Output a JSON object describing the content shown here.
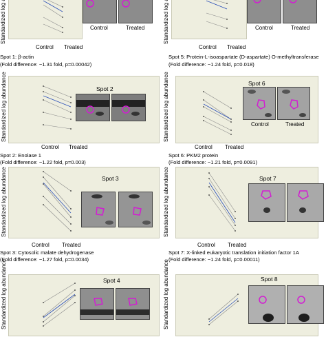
{
  "y_axis_label": "Standardized log abundance",
  "x_categories": [
    "Control",
    "Treated"
  ],
  "gel_labels": [
    "Control",
    "Treated"
  ],
  "colors": {
    "plot_bg": "#eeeedf",
    "line": "#8a8a8a",
    "trend": "#2a4fb8",
    "highlight": "#d21ed2"
  },
  "panels": [
    {
      "id": "spot1",
      "spot_label": "",
      "caption1": "Spot 1: β-actin",
      "caption2": "(Fold difference: −1.31 fold, p=0.00042)"
    },
    {
      "id": "spot5",
      "spot_label": "",
      "caption1": "Spot 5: Protein-L-isoaspartate (D-aspartate) O-methyltransferase",
      "caption2": "(Fold difference: −1.24 fold, p=0.018)"
    },
    {
      "id": "spot2",
      "spot_label": "Spot 2",
      "caption1": "Spot 2: Enolase 1",
      "caption2": "(Fold difference: −1.22 fold, p=0.003)"
    },
    {
      "id": "spot6",
      "spot_label": "Spot 6",
      "caption1": "Spot 6: PKM2 protein",
      "caption2": "(Fold difference: −1.21 fold, p=0.0091)"
    },
    {
      "id": "spot3",
      "spot_label": "Spot 3",
      "caption1": "Spot 3: Cytosolic malate dehydrogenase",
      "caption2": "(Fold difference: −1.27 fold, p=0.0034)"
    },
    {
      "id": "spot7",
      "spot_label": "Spot 7",
      "caption1": "Spot 7: X-linked eukaryotic translation initiation factor 1A",
      "caption2": "(Fold difference: −1.24 fold, p=0.00011)"
    },
    {
      "id": "spot4",
      "spot_label": "Spot 4",
      "caption1": "",
      "caption2": ""
    },
    {
      "id": "spot8",
      "spot_label": "Spot 8",
      "caption1": "",
      "caption2": ""
    }
  ]
}
